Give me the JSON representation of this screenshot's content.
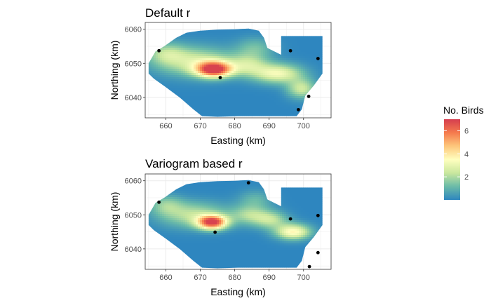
{
  "colors": {
    "scale": [
      "#2E86BF",
      "#6BBBA8",
      "#C9E79E",
      "#FFFFBF",
      "#FDC77C",
      "#F57A4D",
      "#D53E4F"
    ],
    "grid": "#EBEBEB",
    "points": "#000000",
    "axis_text": "#4D4D4D",
    "frame": "#333333"
  },
  "legend": {
    "title": "No. Birds",
    "range": [
      0,
      7
    ],
    "ticks": [
      2,
      4,
      6
    ],
    "tick_labels": [
      "2",
      "4",
      "6"
    ]
  },
  "chart_data": [
    {
      "type": "heatmap",
      "title": "Default r",
      "xlabel": "Easting (km)",
      "ylabel": "Northing (km)",
      "xlim": [
        654,
        708
      ],
      "ylim": [
        6034,
        6062
      ],
      "xticks": [
        660,
        670,
        680,
        690,
        700
      ],
      "yticks": [
        6040,
        6050,
        6060
      ],
      "xtick_labels": [
        "660",
        "670",
        "680",
        "690",
        "700"
      ],
      "ytick_labels": [
        "6040",
        "6050",
        "6060"
      ],
      "grid": true,
      "points": [
        {
          "x": 658.0,
          "y": 6053.7
        },
        {
          "x": 675.8,
          "y": 6045.8
        },
        {
          "x": 696.2,
          "y": 6053.7
        },
        {
          "x": 704.2,
          "y": 6051.4
        },
        {
          "x": 701.5,
          "y": 6040.3
        },
        {
          "x": 698.5,
          "y": 6036.4
        }
      ],
      "density_peaks": [
        {
          "x": 674.0,
          "y": 6048.2,
          "value": 6.8,
          "sx": 3.6,
          "sy": 1.6
        },
        {
          "x": 668.5,
          "y": 6050.5,
          "value": 2.5,
          "sx": 8.0,
          "sy": 3.0
        },
        {
          "x": 660.0,
          "y": 6053.0,
          "value": 1.6,
          "sx": 4.0,
          "sy": 2.2
        },
        {
          "x": 684.0,
          "y": 6049.5,
          "value": 2.0,
          "sx": 4.0,
          "sy": 2.2
        },
        {
          "x": 692.5,
          "y": 6047.0,
          "value": 3.2,
          "sx": 5.0,
          "sy": 2.0
        },
        {
          "x": 699.5,
          "y": 6042.5,
          "value": 2.4,
          "sx": 3.0,
          "sy": 2.0
        },
        {
          "x": 686.0,
          "y": 6054.5,
          "value": 1.2,
          "sx": 4.0,
          "sy": 2.2
        }
      ]
    },
    {
      "type": "heatmap",
      "title": "Variogram based r",
      "xlabel": "Easting (km)",
      "ylabel": "Northing (km)",
      "xlim": [
        654,
        708
      ],
      "ylim": [
        6034,
        6062
      ],
      "xticks": [
        660,
        670,
        680,
        690,
        700
      ],
      "yticks": [
        6040,
        6050,
        6060
      ],
      "xtick_labels": [
        "660",
        "670",
        "680",
        "690",
        "700"
      ],
      "ytick_labels": [
        "6040",
        "6050",
        "6060"
      ],
      "grid": true,
      "points": [
        {
          "x": 658.0,
          "y": 6053.7
        },
        {
          "x": 674.3,
          "y": 6044.9
        },
        {
          "x": 684.0,
          "y": 6059.4
        },
        {
          "x": 696.2,
          "y": 6048.8
        },
        {
          "x": 704.2,
          "y": 6049.8
        },
        {
          "x": 704.2,
          "y": 6038.9
        },
        {
          "x": 701.7,
          "y": 6034.8
        }
      ],
      "density_peaks": [
        {
          "x": 673.5,
          "y": 6047.8,
          "value": 6.5,
          "sx": 3.0,
          "sy": 1.4
        },
        {
          "x": 668.0,
          "y": 6050.0,
          "value": 2.2,
          "sx": 7.0,
          "sy": 2.6
        },
        {
          "x": 660.0,
          "y": 6053.0,
          "value": 1.4,
          "sx": 3.5,
          "sy": 2.0
        },
        {
          "x": 684.5,
          "y": 6050.0,
          "value": 1.8,
          "sx": 4.0,
          "sy": 2.0
        },
        {
          "x": 697.0,
          "y": 6045.0,
          "value": 3.6,
          "sx": 3.6,
          "sy": 1.6
        },
        {
          "x": 690.5,
          "y": 6048.5,
          "value": 2.0,
          "sx": 3.5,
          "sy": 1.8
        },
        {
          "x": 686.0,
          "y": 6054.5,
          "value": 1.0,
          "sx": 3.5,
          "sy": 2.0
        }
      ]
    }
  ]
}
